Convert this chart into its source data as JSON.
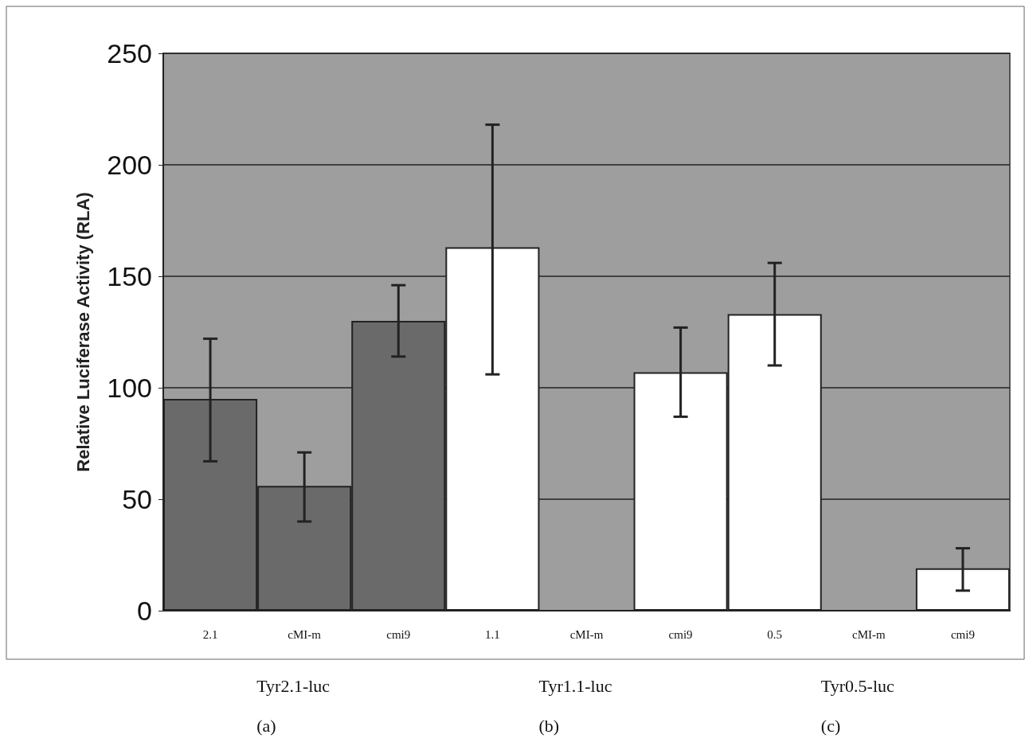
{
  "chart_data": {
    "type": "bar",
    "ylabel": "Relative Luciferase Activity (RLA)",
    "categories": [
      "2.1",
      "cMI-m",
      "cmi9",
      "1.1",
      "cMI-m",
      "cmi9",
      "0.5",
      "cMI-m",
      "cmi9"
    ],
    "values": [
      95,
      56,
      130,
      163,
      null,
      107,
      133,
      null,
      19
    ],
    "colors": [
      "#6a6a6a",
      "#6a6a6a",
      "#6a6a6a",
      "#ffffff",
      "#ffffff",
      "#ffffff",
      "#ffffff",
      "#ffffff",
      "#ffffff"
    ],
    "errors": [
      [
        67,
        122
      ],
      [
        40,
        71
      ],
      [
        114,
        146
      ],
      [
        106,
        218
      ],
      null,
      [
        87,
        127
      ],
      [
        110,
        156
      ],
      null,
      [
        9,
        28
      ]
    ],
    "ylim": [
      0,
      250
    ],
    "yticks": [
      0,
      50,
      100,
      150,
      200,
      250
    ],
    "grid": "y",
    "annotations": [
      "Tyr2.1-luc",
      "Tyr1.1-luc",
      "Tyr0.5-luc",
      "(a)",
      "(b)",
      "(c)"
    ]
  }
}
